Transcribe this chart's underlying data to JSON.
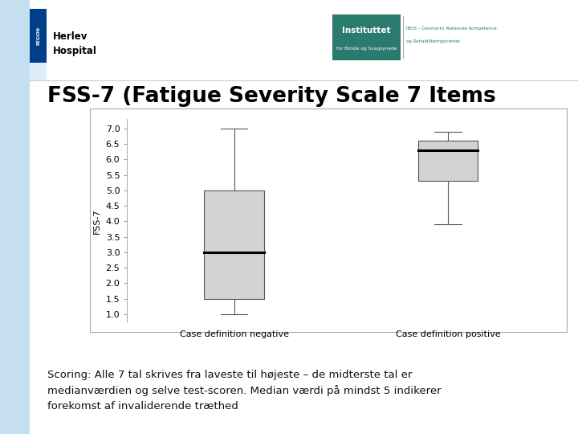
{
  "title": "FSS-7 (Fatigue Severity Scale 7 Items",
  "ylabel": "FSS-7",
  "categories": [
    "Case definition negative",
    "Case definition positive"
  ],
  "box_negative": {
    "whisker_low": 1.0,
    "q1": 1.5,
    "median": 3.0,
    "q3": 5.0,
    "whisker_high": 7.0
  },
  "box_positive": {
    "whisker_low": 3.9,
    "q1": 5.3,
    "median": 6.3,
    "q3": 6.6,
    "whisker_high": 6.9
  },
  "ylim": [
    0.7,
    7.3
  ],
  "yticks": [
    1.0,
    1.5,
    2.0,
    2.5,
    3.0,
    3.5,
    4.0,
    4.5,
    5.0,
    5.5,
    6.0,
    6.5,
    7.0
  ],
  "box_color": "#d3d3d3",
  "box_edgecolor": "#555555",
  "median_color": "#000000",
  "whisker_color": "#555555",
  "cap_color": "#555555",
  "left_bar_color": "#c5dff0",
  "region_bar_color": "#003f8a",
  "inst_bg_color": "#2b7a6e",
  "title_fontsize": 19,
  "axis_fontsize": 8,
  "ylabel_fontsize": 8,
  "xlabel_fontsize": 8,
  "scoring_text": "Scoring: Alle 7 tal skrives fra laveste til højeste – de midterste tal er\nmedianværdien og selve test-scoren. Median værdi på mindst 5 indikerer\nforekomst af invaliderende træthed",
  "scoring_fontsize": 9.5,
  "herlev_text1": "Herlev",
  "herlev_text2": "Hospital",
  "inst_text1": "Instituttet",
  "inst_text2": "for Blinde og Svagsynede",
  "ibos_text1": "IBOS – Danmarks Nationale Kompetence-",
  "ibos_text2": "og Rehabiliteringscenter",
  "region_text": "REGION"
}
